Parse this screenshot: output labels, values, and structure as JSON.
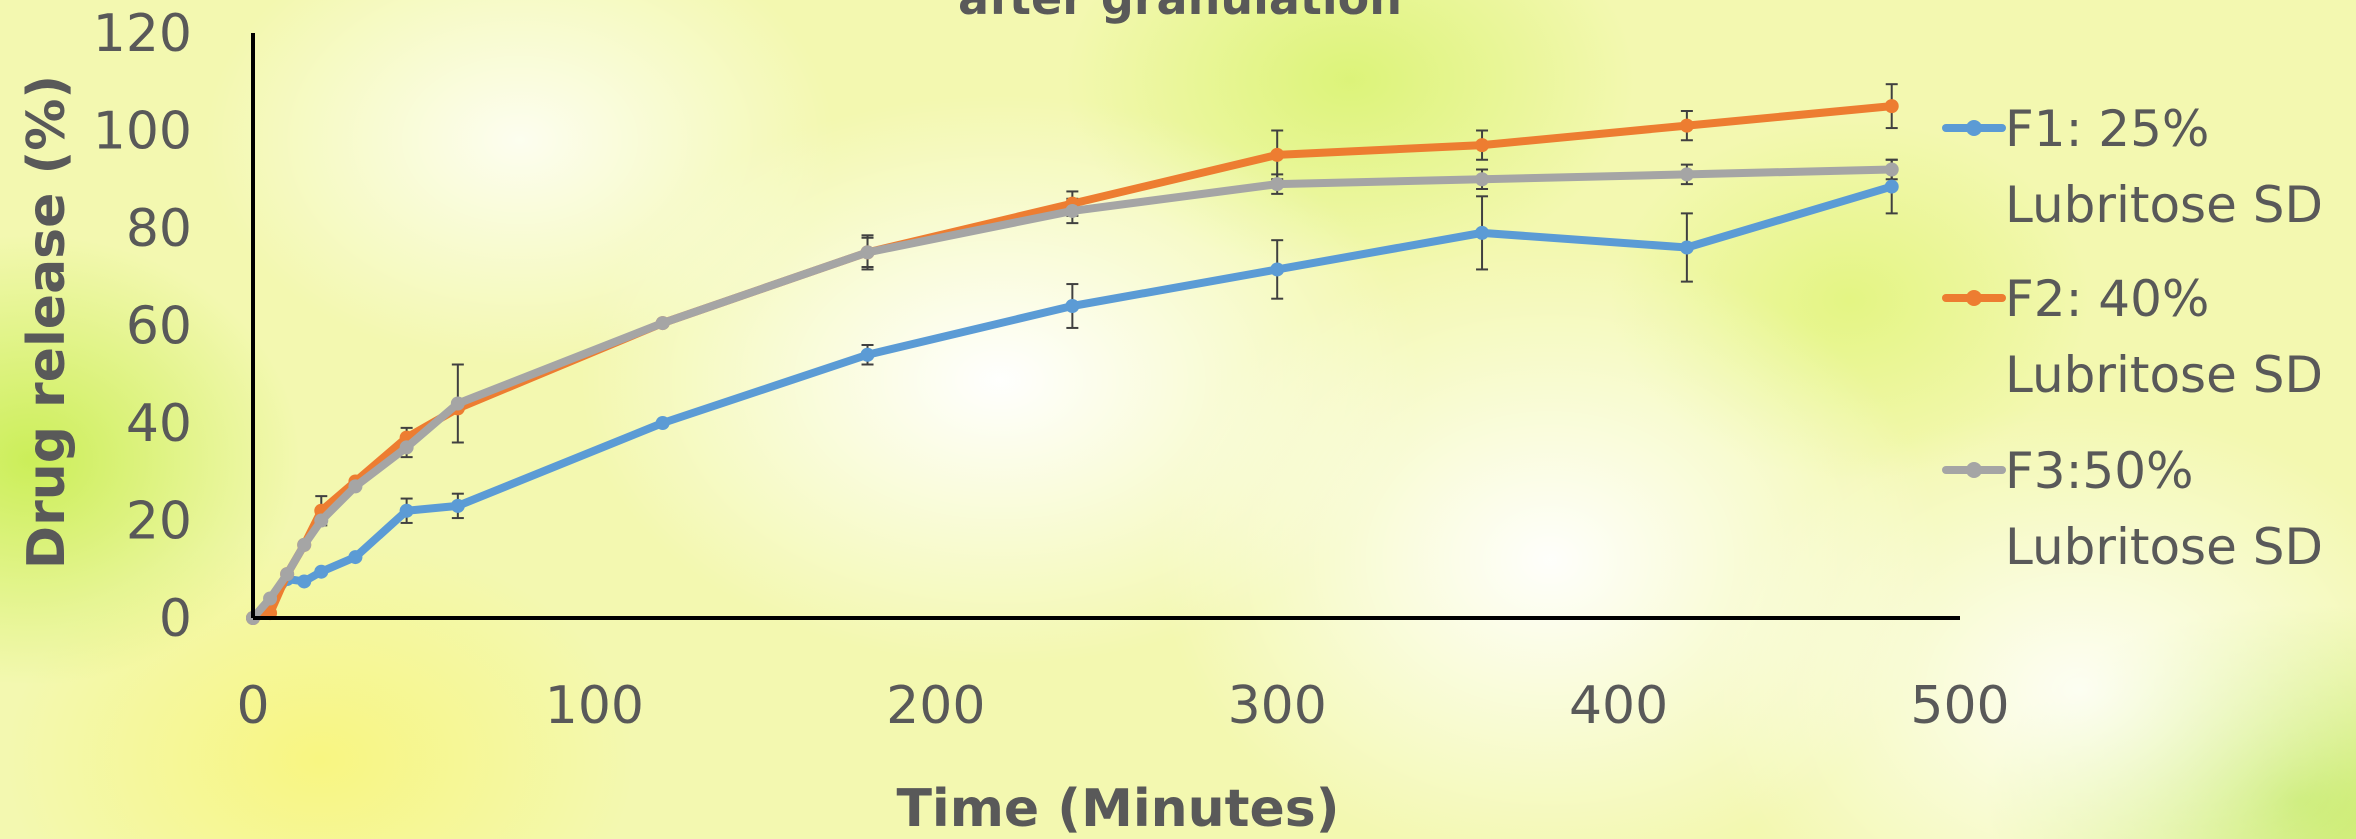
{
  "chart_data": {
    "type": "line",
    "title": "after granulation",
    "xlabel": "Time (Minutes)",
    "ylabel": "Drug release (%)",
    "xlim": [
      0,
      500
    ],
    "ylim": [
      0,
      120
    ],
    "xticks": [
      0,
      100,
      200,
      300,
      400,
      500
    ],
    "yticks": [
      0,
      20,
      40,
      60,
      80,
      100,
      120
    ],
    "x": [
      0,
      5,
      10,
      15,
      20,
      30,
      45,
      60,
      120,
      180,
      240,
      300,
      360,
      420,
      480
    ],
    "grid": false,
    "legend_position": "right",
    "series": [
      {
        "name": "F1: 25% Lubritose SD",
        "legend_lines": [
          "F1: 25%",
          "Lubritose SD"
        ],
        "color": "#5b9bd5",
        "values": [
          0,
          3,
          8,
          7.5,
          9.5,
          12.5,
          22,
          23,
          40,
          54,
          64,
          71.5,
          79,
          76,
          88.5
        ],
        "errors": [
          0,
          0,
          0,
          0,
          0,
          0,
          2.5,
          2.5,
          0,
          2,
          4.5,
          6,
          7.5,
          7,
          5.5
        ]
      },
      {
        "name": "F2: 40% Lubritose SD",
        "legend_lines": [
          "F2: 40%",
          "Lubritose SD"
        ],
        "color": "#ed7d31",
        "values": [
          0,
          1,
          9,
          15,
          22,
          28,
          37,
          43,
          60.5,
          75,
          85,
          95,
          97,
          101,
          105
        ],
        "errors": [
          0,
          0,
          0,
          0,
          3,
          0,
          2,
          0,
          0,
          3,
          2.5,
          5,
          3,
          3,
          4.5
        ]
      },
      {
        "name": "F3:50% Lubritose SD",
        "legend_lines": [
          "F3:50%",
          "Lubritose SD"
        ],
        "color": "#a5a5a5",
        "values": [
          0,
          4,
          9,
          15,
          20,
          27,
          35,
          44,
          60.5,
          75,
          83.5,
          89,
          90,
          91,
          92
        ],
        "errors": [
          0,
          0,
          0,
          0,
          0,
          0,
          2,
          8,
          0,
          3.5,
          2.5,
          2,
          2,
          2,
          2
        ]
      }
    ]
  }
}
